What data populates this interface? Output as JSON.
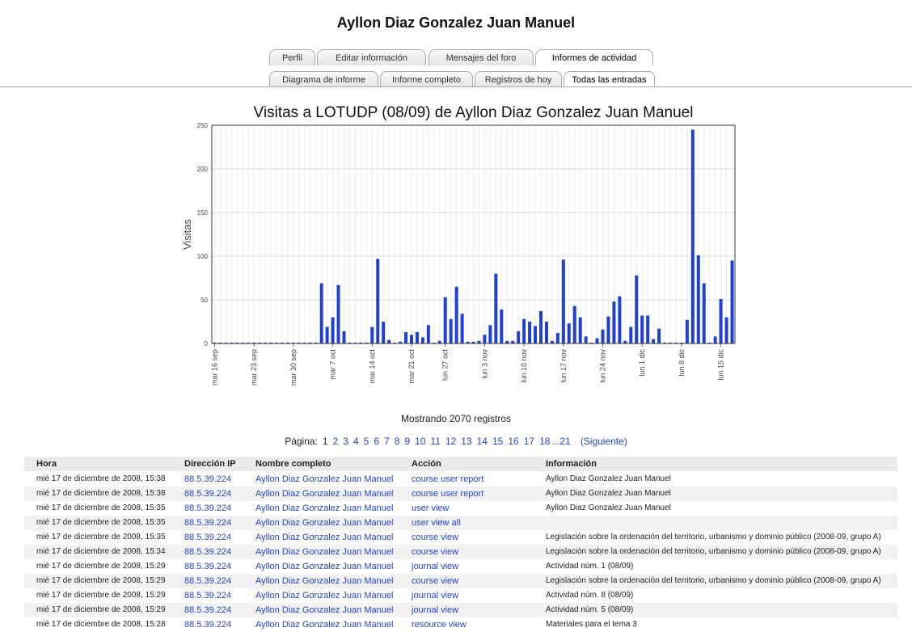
{
  "header": {
    "title": "Ayllon Diaz Gonzalez Juan Manuel"
  },
  "tabs": {
    "row1": [
      "Perfil",
      "Editar información",
      "Mensajes del foro",
      "Informes de actividad"
    ],
    "row2": [
      "Diagrama de informe",
      "Informe completo",
      "Registros de hoy",
      "Todas las entradas"
    ]
  },
  "chart_data": {
    "type": "bar",
    "title": "Visitas a LOTUDP (08/09) de Ayllon Diaz Gonzalez Juan Manuel",
    "y_label": "Visitas",
    "color": "#1f3fd6",
    "grid": true,
    "ylim": [
      0,
      250
    ],
    "yticks": [
      0,
      50,
      100,
      150,
      200,
      250
    ],
    "categories": [
      "mar 16 sep",
      null,
      null,
      null,
      null,
      null,
      null,
      "mar 23 sep",
      null,
      null,
      null,
      null,
      null,
      null,
      "mar 30 sep",
      null,
      null,
      null,
      null,
      null,
      null,
      "mar 7 oct",
      null,
      null,
      null,
      null,
      null,
      null,
      "mar 14 oct",
      null,
      null,
      null,
      null,
      null,
      null,
      "mar 21 oct",
      null,
      null,
      null,
      null,
      null,
      "lun 27 oct",
      null,
      null,
      null,
      null,
      null,
      null,
      "lun 3 nov",
      null,
      null,
      null,
      null,
      null,
      null,
      "lun 10 nov",
      null,
      null,
      null,
      null,
      null,
      null,
      "lun 17 nov",
      null,
      null,
      null,
      null,
      null,
      null,
      "lun 24 nov",
      null,
      null,
      null,
      null,
      null,
      null,
      "lun 1 dic",
      null,
      null,
      null,
      null,
      null,
      null,
      "lun 8 dic",
      null,
      null,
      null,
      null,
      null,
      null,
      "lun 15 dic",
      null,
      null
    ],
    "values": [
      1,
      1,
      1,
      1,
      1,
      1,
      1,
      1,
      1,
      1,
      1,
      1,
      1,
      1,
      1,
      1,
      1,
      1,
      1,
      69,
      19,
      30,
      67,
      14,
      1,
      1,
      1,
      1,
      19,
      97,
      25,
      4,
      1,
      2,
      13,
      10,
      13,
      7,
      21,
      1,
      3,
      53,
      28,
      65,
      34,
      2,
      2,
      3,
      10,
      21,
      80,
      39,
      3,
      3,
      14,
      28,
      25,
      20,
      37,
      25,
      3,
      12,
      96,
      23,
      43,
      30,
      8,
      1,
      6,
      16,
      31,
      48,
      54,
      3,
      19,
      78,
      32,
      32,
      5,
      17,
      1,
      1,
      1,
      1,
      27,
      245,
      101,
      69,
      1,
      8,
      51,
      30,
      95
    ]
  },
  "summary": "Mostrando 2070 registros",
  "pagination": {
    "label": "Página:",
    "current": 1,
    "pages": [
      2,
      3,
      4,
      5,
      6,
      7,
      8,
      9,
      10,
      11,
      12,
      13,
      14,
      15,
      16,
      17,
      18
    ],
    "last": "...21",
    "next": "(Siguiente)"
  },
  "table": {
    "columns": [
      "Hora",
      "Dirección IP",
      "Nombre completo",
      "Acción",
      "Información"
    ],
    "rows": [
      [
        "mié 17 de diciembre de 2008, 15:38",
        "88.5.39.224",
        "Ayllon Diaz Gonzalez Juan Manuel",
        "course user report",
        "Ayllon Diaz Gonzalez Juan Manuel"
      ],
      [
        "mié 17 de diciembre de 2008, 15:38",
        "88.5.39.224",
        "Ayllon Diaz Gonzalez Juan Manuel",
        "course user report",
        "Ayllon Diaz Gonzalez Juan Manuel"
      ],
      [
        "mié 17 de diciembre de 2008, 15:35",
        "88.5.39.224",
        "Ayllon Diaz Gonzalez Juan Manuel",
        "user view",
        "Ayllon Diaz Gonzalez Juan Manuel"
      ],
      [
        "mié 17 de diciembre de 2008, 15:35",
        "88.5.39.224",
        "Ayllon Diaz Gonzalez Juan Manuel",
        "user view all",
        null
      ],
      [
        "mié 17 de diciembre de 2008, 15:35",
        "88.5.39.224",
        "Ayllon Diaz Gonzalez Juan Manuel",
        "course view",
        "Legislación sobre la ordenación del territorio, urbanismo y dominio público (2008-09, grupo A)"
      ],
      [
        "mié 17 de diciembre de 2008, 15:34",
        "88.5.39.224",
        "Ayllon Diaz Gonzalez Juan Manuel",
        "course view",
        "Legislación sobre la ordenación del territorio, urbanismo y dominio público (2008-09, grupo A)"
      ],
      [
        "mié 17 de diciembre de 2008, 15:29",
        "88.5.39.224",
        "Ayllon Diaz Gonzalez Juan Manuel",
        "journal view",
        "Actividad núm. 1 (08/09)"
      ],
      [
        "mié 17 de diciembre de 2008, 15:29",
        "88.5.39.224",
        "Ayllon Diaz Gonzalez Juan Manuel",
        "course view",
        "Legislación sobre la ordenación del territorio, urbanismo y dominio público (2008-09, grupo A)"
      ],
      [
        "mié 17 de diciembre de 2008, 15:29",
        "88.5.39.224",
        "Ayllon Diaz Gonzalez Juan Manuel",
        "journal view",
        "Actividad núm. 8 (08/09)"
      ],
      [
        "mié 17 de diciembre de 2008, 15:29",
        "88.5.39.224",
        "Ayllon Diaz Gonzalez Juan Manuel",
        "journal view",
        "Actividad núm. 5 (08/09)"
      ],
      [
        "mié 17 de diciembre de 2008, 15:28",
        "88.5.39.224",
        "Ayllon Diaz Gonzalez Juan Manuel",
        "resource view",
        "Materiales para el tema 3"
      ]
    ]
  }
}
